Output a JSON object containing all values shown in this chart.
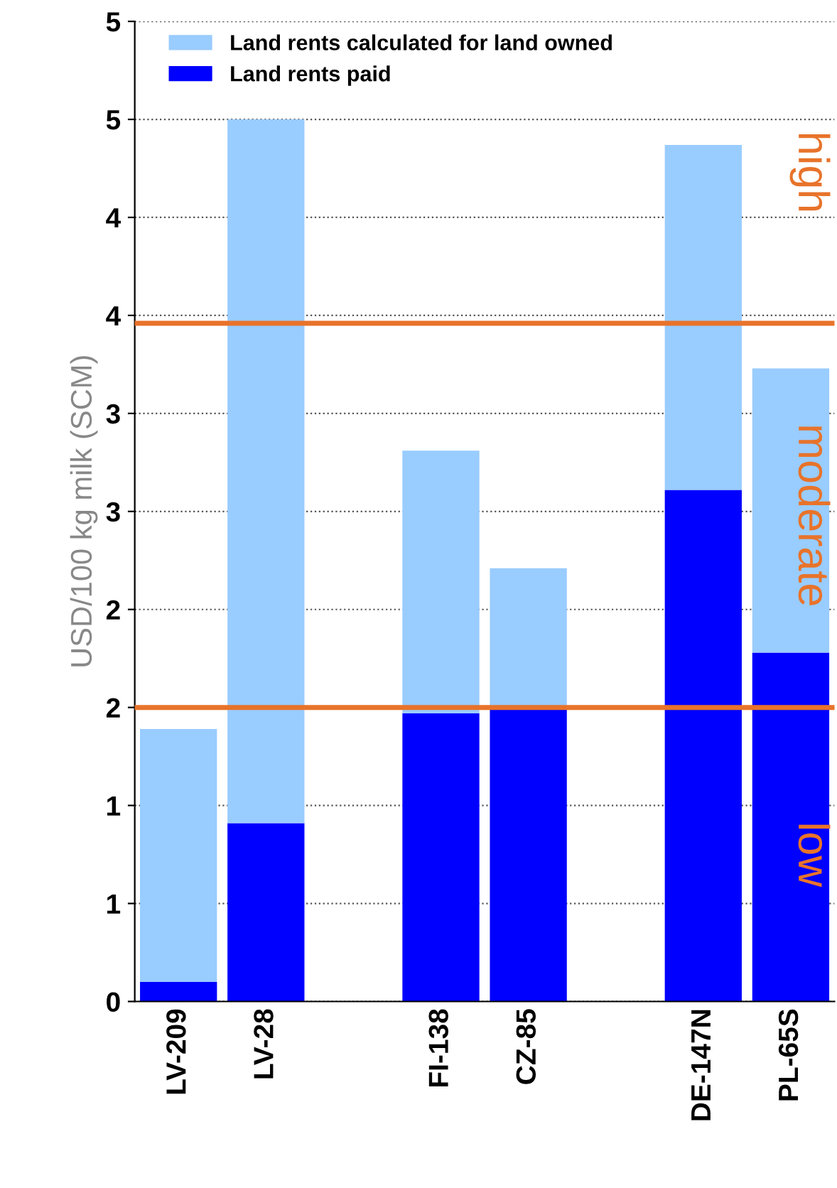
{
  "chart_data": {
    "type": "bar",
    "stacked": true,
    "ylabel": "USD/100 kg milk (SCM)",
    "categories": [
      "LV-209",
      "LV-28",
      null,
      "FI-138",
      "CZ-85",
      null,
      "DE-147N",
      "PL-65S"
    ],
    "series": [
      {
        "name": "Land rents paid",
        "color": "#0000ff",
        "values": [
          0.1,
          0.91,
          null,
          1.47,
          1.49,
          null,
          2.61,
          1.78
        ]
      },
      {
        "name": "Land rents calculated for land owned",
        "color": "#99ccff",
        "values": [
          1.29,
          3.59,
          null,
          1.34,
          0.72,
          null,
          1.76,
          1.45
        ]
      }
    ],
    "ylim": [
      0,
      5
    ],
    "yticks": [
      0,
      {
        "value": 0.5,
        "label": "1"
      },
      1,
      {
        "value": 1.5,
        "label": "2"
      },
      2,
      {
        "value": 2.5,
        "label": "3"
      },
      3,
      {
        "value": 3.5,
        "label": "4"
      },
      4,
      {
        "value": 4.5,
        "label": "5"
      },
      5
    ],
    "grid": "y",
    "legend": "top left",
    "ref_lines": [
      {
        "axis": "y",
        "value": 3.46,
        "color": "#e8732a"
      },
      {
        "axis": "y",
        "value": 1.5,
        "color": "#e8732a"
      }
    ],
    "annotations": [
      "high",
      "moderate",
      "low"
    ]
  }
}
